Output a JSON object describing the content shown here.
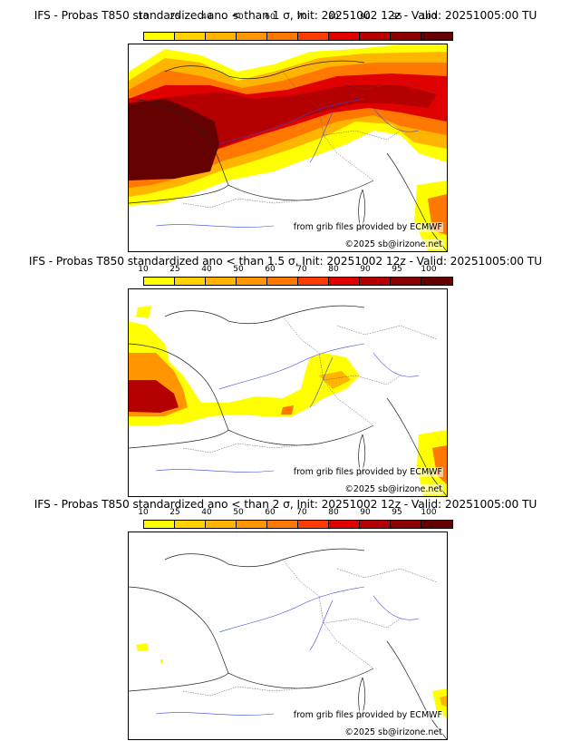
{
  "legend": {
    "levels": [
      "10",
      "25",
      "40",
      "50",
      "60",
      "70",
      "80",
      "90",
      "95",
      "100"
    ],
    "colors": [
      "#ffff00",
      "#ffd200",
      "#ffb400",
      "#ff9600",
      "#ff7800",
      "#ff3c00",
      "#e10000",
      "#b40000",
      "#8c0000",
      "#640000"
    ]
  },
  "panels": [
    {
      "title": "IFS - Probas T850  standardized ano < than 1 σ, Init: 20251002 12z - Valid: 20251005:00 TU",
      "source": "from grib files provided by ECMWF",
      "copyright": "©2025 sb@irizone.net"
    },
    {
      "title": "IFS - Probas T850  standardized ano < than 1.5 σ, Init: 20251002 12z - Valid: 20251005:00 TU",
      "source": "from grib files provided by ECMWF",
      "copyright": "©2025 sb@irizone.net"
    },
    {
      "title": "IFS - Probas T850  standardized ano < than 2 σ, Init: 20251002 12z - Valid: 20251005:00 TU",
      "source": "from grib files provided by ECMWF",
      "copyright": "©2025 sb@irizone.net"
    }
  ]
}
